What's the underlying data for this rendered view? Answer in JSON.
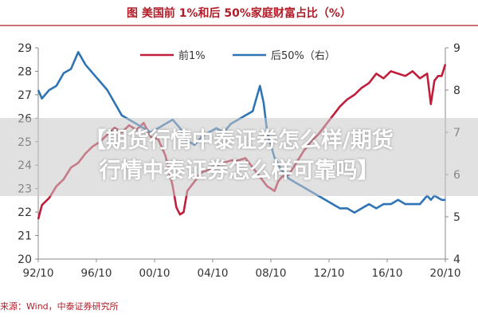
{
  "chart_data": {
    "type": "line",
    "title": "图  美国前 1%和后 50%家庭财富占比（%）",
    "x_tick_labels": [
      "92/10",
      "96/10",
      "00/10",
      "04/10",
      "08/10",
      "12/10",
      "16/10",
      "20/10"
    ],
    "y_left": {
      "lim": [
        20,
        29
      ],
      "ticks": [
        20,
        21,
        22,
        23,
        24,
        25,
        26,
        27,
        28,
        29
      ]
    },
    "y_right": {
      "lim": [
        4,
        9
      ],
      "ticks": [
        4,
        5,
        6,
        7,
        8,
        9
      ]
    },
    "grid": false,
    "legend_position": "top-right",
    "series": [
      {
        "name": "前1%",
        "axis": "left",
        "color": "#c01f3c",
        "x": [
          1992.75,
          1993.0,
          1993.5,
          1994.0,
          1994.5,
          1995.0,
          1995.5,
          1996.0,
          1996.5,
          1997.0,
          1997.5,
          1998.0,
          1998.5,
          1999.0,
          1999.5,
          2000.0,
          2000.5,
          2001.0,
          2001.5,
          2002.0,
          2002.25,
          2002.5,
          2002.75,
          2003.0,
          2003.5,
          2004.0,
          2004.5,
          2005.0,
          2005.5,
          2006.0,
          2006.5,
          2007.0,
          2007.5,
          2008.0,
          2008.5,
          2009.0,
          2009.25,
          2009.5,
          2010.0,
          2010.5,
          2011.0,
          2011.5,
          2012.0,
          2012.5,
          2013.0,
          2013.5,
          2014.0,
          2014.5,
          2015.0,
          2015.5,
          2016.0,
          2016.5,
          2017.0,
          2017.5,
          2018.0,
          2018.5,
          2019.0,
          2019.5,
          2019.75,
          2020.0,
          2020.25,
          2020.5,
          2020.75
        ],
        "values": [
          21.7,
          22.3,
          22.6,
          23.1,
          23.4,
          23.9,
          24.1,
          24.5,
          24.8,
          25.0,
          25.3,
          25.6,
          25.4,
          25.7,
          25.5,
          25.8,
          25.2,
          25.1,
          24.4,
          23.1,
          22.2,
          21.9,
          22.0,
          22.9,
          23.3,
          23.7,
          23.8,
          24.0,
          24.1,
          24.2,
          24.2,
          24.3,
          23.9,
          23.5,
          23.1,
          22.9,
          23.3,
          23.5,
          23.6,
          24.1,
          24.6,
          25.0,
          25.3,
          25.7,
          26.1,
          26.5,
          26.8,
          27.0,
          27.3,
          27.5,
          27.9,
          27.7,
          28.0,
          27.9,
          27.8,
          28.0,
          27.7,
          27.9,
          26.6,
          27.6,
          27.8,
          27.8,
          28.3
        ]
      },
      {
        "name": "后50%（右）",
        "axis": "right",
        "color": "#2f74b5",
        "x": [
          1992.75,
          1993.0,
          1993.5,
          1994.0,
          1994.5,
          1995.0,
          1995.5,
          1996.0,
          1996.5,
          1997.0,
          1997.5,
          1998.0,
          1998.5,
          1999.0,
          1999.5,
          2000.0,
          2000.5,
          2001.0,
          2001.5,
          2002.0,
          2002.5,
          2003.0,
          2003.5,
          2004.0,
          2004.5,
          2005.0,
          2005.5,
          2006.0,
          2006.5,
          2007.0,
          2007.5,
          2008.0,
          2008.25,
          2008.5,
          2009.0,
          2009.5,
          2010.0,
          2010.5,
          2011.0,
          2011.5,
          2012.0,
          2012.5,
          2013.0,
          2013.5,
          2014.0,
          2014.5,
          2015.0,
          2015.5,
          2016.0,
          2016.5,
          2017.0,
          2017.5,
          2018.0,
          2018.5,
          2019.0,
          2019.5,
          2019.75,
          2020.0,
          2020.5,
          2020.75
        ],
        "values": [
          8.0,
          7.8,
          8.0,
          8.1,
          8.4,
          8.5,
          8.9,
          8.6,
          8.4,
          8.2,
          8.0,
          7.7,
          7.4,
          7.3,
          7.2,
          7.1,
          7.0,
          7.1,
          7.2,
          7.3,
          7.1,
          6.8,
          6.7,
          6.9,
          7.0,
          7.1,
          7.0,
          7.2,
          7.3,
          7.4,
          7.5,
          8.1,
          7.7,
          7.0,
          6.4,
          6.1,
          5.9,
          5.8,
          5.7,
          5.6,
          5.5,
          5.4,
          5.3,
          5.2,
          5.2,
          5.1,
          5.2,
          5.3,
          5.2,
          5.3,
          5.3,
          5.4,
          5.3,
          5.3,
          5.3,
          5.5,
          5.4,
          5.5,
          5.4,
          5.4
        ]
      }
    ]
  },
  "overlay": {
    "line1": "【期货行情中泰证券怎么样/期货",
    "line2": "行情中泰证券怎么样可靠吗】"
  },
  "source": "来源：Wind，中泰证券研究所"
}
